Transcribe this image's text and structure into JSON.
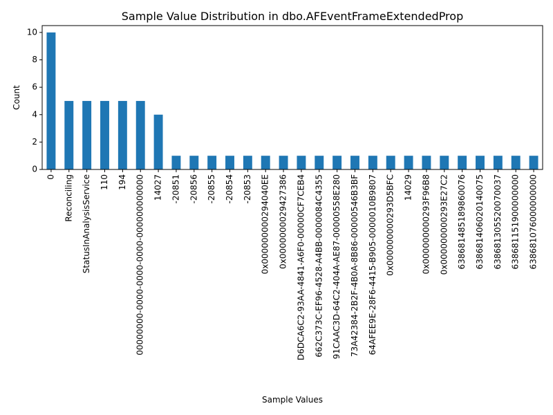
{
  "chart_data": {
    "type": "bar",
    "title": "Sample Value Distribution in dbo.AFEventFrameExtendedProp",
    "xlabel": "Sample Values",
    "ylabel": "Count",
    "ylim": [
      0,
      10.5
    ],
    "yticks": [
      0,
      2,
      4,
      6,
      8,
      10
    ],
    "grid": false,
    "bar_color": "#1f77b4",
    "categories": [
      "0",
      "Reconciling",
      "StatusInAnalysisService",
      "110",
      "194",
      "00000000-0000-0000-0000-000000000000",
      "14027",
      "-20851",
      "-20856",
      "-20855",
      "-20854",
      "-20853",
      "0x000000000294040EE",
      "0x0000000029427386",
      "D6DCA6C2-93AA-4841-A6F0-00000CF7CEB4",
      "662C373C-EF96-4528-A4BB-0000084C4355",
      "91CAAC3D-64C2-404A-AE87-00000558E280",
      "73A42384-2B2F-4B0A-8B86-00000546B3BF",
      "64AFEE9E-28F6-4415-B905-0000010B9807",
      "0x000000000293D5BFC",
      "14029",
      "0x000000000293F96B8",
      "0x000000000293E27C2",
      "638681485189860076",
      "638681406020140075",
      "638681305520070037",
      "638681151900000000",
      "638681076000000000"
    ],
    "values": [
      10,
      5,
      5,
      5,
      5,
      5,
      4,
      1,
      1,
      1,
      1,
      1,
      1,
      1,
      1,
      1,
      1,
      1,
      1,
      1,
      1,
      1,
      1,
      1,
      1,
      1,
      1,
      1
    ]
  }
}
